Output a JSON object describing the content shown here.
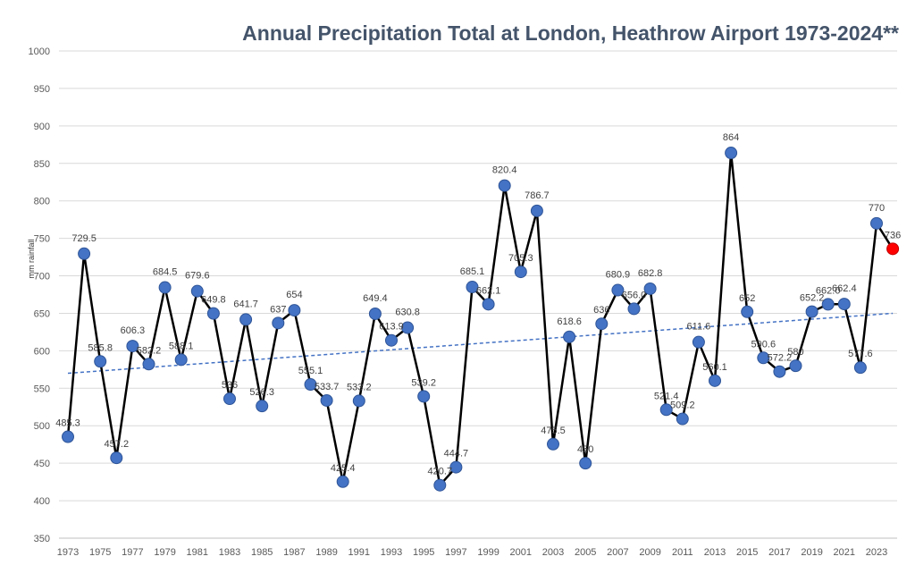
{
  "chart_data": {
    "type": "line",
    "title": "Annual Precipitation Total at London, Heathrow Airport 1973-2024**",
    "ylabel": "mm rainfall",
    "xlabel": "",
    "ylim": [
      350,
      1000
    ],
    "yticks": [
      350,
      400,
      450,
      500,
      550,
      600,
      650,
      700,
      750,
      800,
      850,
      900,
      950,
      1000
    ],
    "xtick_labels": [
      "1973",
      "1975",
      "1977",
      "1979",
      "1981",
      "1983",
      "1985",
      "1987",
      "1989",
      "1991",
      "1993",
      "1995",
      "1997",
      "1999",
      "2001",
      "2003",
      "2005",
      "2007",
      "2009",
      "2011",
      "2013",
      "2015",
      "2017",
      "2019",
      "2021",
      "2023"
    ],
    "grid": true,
    "series": [
      {
        "x": [
          1973,
          1974,
          1975,
          1976,
          1977,
          1978,
          1979,
          1980,
          1981,
          1982,
          1983,
          1984,
          1985,
          1986,
          1987,
          1988,
          1989,
          1990,
          1991,
          1992,
          1993,
          1994,
          1995,
          1996,
          1997,
          1998,
          1999,
          2000,
          2001,
          2002,
          2003,
          2004,
          2005,
          2006,
          2007,
          2008,
          2009,
          2010,
          2011,
          2012,
          2013,
          2014,
          2015,
          2016,
          2017,
          2018,
          2019,
          2020,
          2021,
          2022,
          2023,
          2024
        ],
        "values": [
          485.3,
          729.5,
          585.8,
          457.2,
          606.3,
          582.2,
          684.5,
          588.1,
          679.6,
          649.8,
          536,
          641.7,
          526.3,
          637,
          654,
          555.1,
          533.7,
          425.4,
          533.2,
          649.4,
          613.9,
          630.8,
          539.2,
          420.7,
          444.7,
          685.1,
          662.1,
          820.4,
          705.3,
          786.7,
          475.5,
          618.6,
          450,
          636,
          680.9,
          656,
          682.8,
          521.4,
          509.2,
          611.6,
          560.1,
          864,
          652,
          590.6,
          572.2,
          580,
          652.2,
          662,
          662.4,
          577.6,
          770,
          736
        ],
        "labels": [
          "485.3",
          "729.5",
          "585.8",
          "457.2",
          "606.3",
          "582.2",
          "684.5",
          "588.1",
          "679.6",
          "649.8",
          "536",
          "641.7",
          "526.3",
          "637",
          "654",
          "555.1",
          "533.7",
          "425.4",
          "533.2",
          "649.4",
          "613.9",
          "630.8",
          "539.2",
          "420.7",
          "444.7",
          "685.1",
          "662.1",
          "820.4",
          "705.3",
          "786.7",
          "475.5",
          "618.6",
          "450",
          "636",
          "680.9",
          "656.0",
          "682.8",
          "521.4",
          "509.2",
          "611.6",
          "560.1",
          "864",
          "652",
          "590.6",
          "572.2",
          "580",
          "652.2",
          "662.0",
          "662.4",
          "577.6",
          "770",
          "736"
        ],
        "line_color": "#000000",
        "marker_color": "#4472c4",
        "last_marker_color": "#ff0000"
      }
    ],
    "trendline": {
      "style": "dashed",
      "color": "#4472c4",
      "start": 570,
      "end": 650
    }
  }
}
